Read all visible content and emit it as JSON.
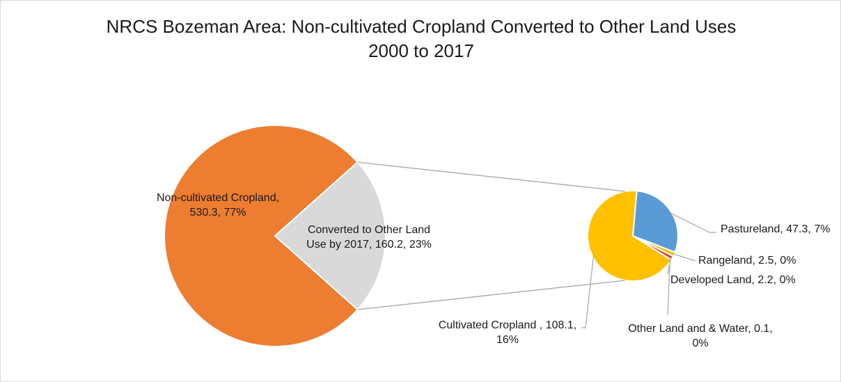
{
  "title": "NRCS Bozeman Area: Non-cultivated Cropland Converted to Other Land Uses",
  "subtitle": "2000 to 2017",
  "chart_data": {
    "type": "pie",
    "subtype": "pie-of-pie",
    "title": "NRCS Bozeman Area: Non-cultivated Cropland Converted to Other Land Uses",
    "subtitle": "2000 to 2017",
    "primary": {
      "slices": [
        {
          "label": "Non-cultivated Cropland",
          "value": 530.3,
          "percent": "77%",
          "color": "#ED7D31"
        },
        {
          "label": "Converted to Other Land Use by 2017",
          "value": 160.2,
          "percent": "23%",
          "color": "#D9D9D9"
        }
      ]
    },
    "secondary": {
      "slices": [
        {
          "label": "Pastureland",
          "value": 47.3,
          "percent": "7%",
          "color": "#5B9BD5"
        },
        {
          "label": "Rangeland",
          "value": 2.5,
          "percent": "0%",
          "color": "#FFC000"
        },
        {
          "label": "Developed Land",
          "value": 2.2,
          "percent": "0%",
          "color": "#E03C31"
        },
        {
          "label": "Other Land and & Water",
          "value": 0.1,
          "percent": "0%",
          "color": "#A5A5A5"
        },
        {
          "label": "Cultivated Cropland ",
          "value": 108.1,
          "percent": "16%",
          "color": "#FFC000"
        }
      ]
    },
    "data_labels": [
      {
        "lines": [
          "Non-cultivated Cropland,",
          "530.3, 77%"
        ]
      },
      {
        "lines": [
          "Converted to Other Land",
          "Use by 2017, 160.2, 23%"
        ]
      },
      {
        "lines": [
          "Pastureland, 47.3, 7%"
        ]
      },
      {
        "lines": [
          "Rangeland, 2.5, 0%"
        ]
      },
      {
        "lines": [
          "Developed Land, 2.2, 0%"
        ]
      },
      {
        "lines": [
          "Other Land and & Water, 0.1,",
          "0%"
        ]
      },
      {
        "lines": [
          "Cultivated Cropland , 108.1,",
          "16%"
        ]
      }
    ],
    "legend": "none"
  }
}
